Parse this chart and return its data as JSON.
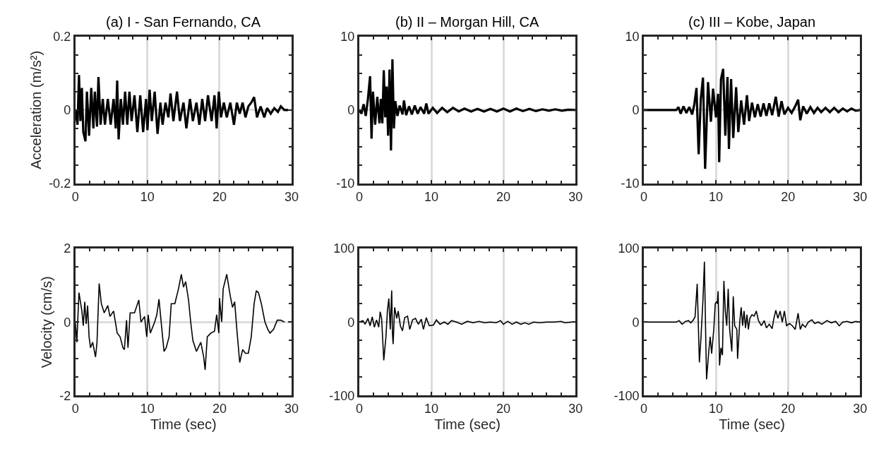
{
  "chart_data": [
    {
      "type": "line",
      "title": "(a) I - San Fernando, CA",
      "ylabel": "Acceleration (m/s²)",
      "xlim": [
        0,
        30
      ],
      "xticks": [
        0,
        10,
        20,
        30
      ],
      "ylim": [
        -0.2,
        0.2
      ],
      "yticks": [
        -0.2,
        0,
        0.2
      ],
      "grid": true,
      "series": [
        {
          "color": "#000000",
          "x": [
            0,
            0.3,
            0.5,
            0.7,
            0.9,
            1.1,
            1.4,
            1.6,
            1.9,
            2.2,
            2.5,
            2.7,
            3.0,
            3.2,
            3.5,
            3.8,
            4.1,
            4.5,
            4.9,
            5.3,
            5.6,
            5.8,
            6.0,
            6.3,
            6.6,
            6.9,
            7.2,
            7.5,
            7.8,
            8.2,
            8.6,
            9.0,
            9.4,
            9.8,
            10.0,
            10.3,
            10.6,
            11.0,
            11.4,
            11.8,
            12.1,
            12.5,
            12.9,
            13.2,
            13.6,
            14.1,
            14.5,
            15.0,
            15.4,
            15.9,
            16.3,
            16.8,
            17.2,
            17.6,
            18.0,
            18.4,
            18.9,
            19.3,
            19.6,
            19.9,
            20.2,
            20.6,
            21.0,
            21.5,
            22.0,
            22.4,
            22.8,
            23.2,
            23.6,
            24.0,
            24.4,
            24.8,
            25.2,
            25.7,
            26.2,
            26.6,
            27.1,
            27.6,
            28.1,
            28.5,
            29.0,
            29.5
          ],
          "values": [
            0,
            -0.04,
            0.095,
            -0.03,
            0.06,
            -0.06,
            -0.085,
            0.05,
            -0.07,
            0.06,
            -0.05,
            0.05,
            -0.045,
            0.09,
            -0.04,
            0.03,
            -0.04,
            0.03,
            -0.04,
            0.03,
            -0.05,
            0.08,
            -0.08,
            0.03,
            -0.04,
            0.05,
            -0.04,
            0.05,
            -0.03,
            0.04,
            -0.06,
            0.04,
            -0.06,
            0.03,
            -0.055,
            0.055,
            -0.03,
            0.05,
            -0.065,
            0.02,
            -0.04,
            0.02,
            -0.02,
            0.045,
            -0.03,
            0.05,
            -0.03,
            0.02,
            -0.05,
            0.03,
            -0.03,
            0.02,
            -0.04,
            0.03,
            -0.03,
            0.04,
            -0.03,
            0.04,
            -0.05,
            0.05,
            -0.02,
            0.02,
            -0.02,
            0.02,
            -0.04,
            0.02,
            -0.01,
            0.02,
            -0.02,
            0.01,
            0.02,
            0.035,
            -0.02,
            0.01,
            -0.02,
            0.005,
            -0.01,
            0.005,
            -0.005,
            0.01,
            0,
            0
          ]
        }
      ]
    },
    {
      "type": "line",
      "title": "(b) II – Morgan Hill, CA",
      "xlim": [
        0,
        30
      ],
      "xticks": [
        0,
        10,
        20,
        30
      ],
      "ylim": [
        -10,
        10
      ],
      "yticks": [
        -10,
        0,
        10
      ],
      "grid": true,
      "series": [
        {
          "color": "#000000",
          "x": [
            0,
            0.3,
            0.6,
            0.9,
            1.2,
            1.5,
            1.7,
            1.9,
            2.2,
            2.5,
            2.8,
            3.0,
            3.2,
            3.4,
            3.6,
            3.8,
            4.0,
            4.2,
            4.4,
            4.6,
            4.8,
            5.0,
            5.3,
            5.6,
            6.0,
            6.2,
            6.5,
            6.9,
            7.3,
            7.7,
            8.1,
            8.5,
            9.0,
            9.3,
            9.6,
            10.2,
            10.8,
            11.5,
            12.2,
            13.0,
            13.8,
            14.6,
            15.5,
            16.4,
            17.3,
            18.2,
            19.1,
            20.0,
            20.9,
            21.8,
            22.7,
            23.6,
            24.5,
            25.4,
            26.3,
            27.2,
            28.1,
            29.0,
            30
          ],
          "values": [
            0,
            -0.5,
            0.8,
            -0.8,
            1.5,
            4.6,
            -3.9,
            2.5,
            -2,
            1.8,
            -1.8,
            1.5,
            -1.8,
            5.4,
            -1,
            3.2,
            -3.5,
            5.5,
            -5.5,
            6.9,
            -2.5,
            1.2,
            -0.8,
            0.6,
            -0.6,
            1.3,
            -0.7,
            0.5,
            -0.6,
            0.6,
            -0.5,
            0.4,
            -0.5,
            0.9,
            -0.5,
            0.3,
            -0.4,
            0.3,
            -0.3,
            0.3,
            -0.2,
            0.2,
            -0.2,
            0.15,
            -0.2,
            0.15,
            -0.2,
            0.2,
            -0.2,
            0.2,
            -0.15,
            0.15,
            -0.15,
            0.1,
            -0.1,
            0.1,
            -0.1,
            0.05,
            0
          ]
        }
      ]
    },
    {
      "type": "line",
      "title": "(c) III – Kobe, Japan",
      "xlim": [
        0,
        30
      ],
      "xticks": [
        0,
        10,
        20,
        30
      ],
      "ylim": [
        -10,
        10
      ],
      "yticks": [
        -10,
        0,
        10
      ],
      "grid": true,
      "series": [
        {
          "color": "#000000",
          "x": [
            0,
            4.5,
            4.8,
            5.1,
            5.5,
            5.9,
            6.3,
            6.7,
            7.0,
            7.3,
            7.6,
            7.9,
            8.2,
            8.5,
            8.9,
            9.3,
            9.6,
            10.0,
            10.3,
            10.45,
            10.7,
            11.0,
            11.3,
            11.6,
            11.8,
            12.1,
            12.4,
            12.8,
            13.1,
            13.5,
            13.9,
            14.3,
            14.6,
            15.0,
            15.4,
            15.8,
            16.2,
            16.6,
            17.0,
            17.4,
            17.8,
            18.3,
            18.7,
            19.1,
            19.5,
            20.0,
            20.5,
            21.0,
            21.4,
            21.7,
            22.1,
            22.6,
            23.1,
            23.6,
            24.1,
            24.6,
            25.2,
            25.8,
            26.4,
            27.0,
            27.6,
            28.2,
            28.8,
            29.4,
            30
          ],
          "values": [
            0,
            0,
            0.4,
            -0.5,
            0.5,
            -0.4,
            0.4,
            -0.6,
            0.8,
            3.0,
            -6.0,
            1.5,
            4.4,
            -8.0,
            3.8,
            -1.6,
            2.9,
            -1.0,
            2.2,
            -7.1,
            4.2,
            5.6,
            -3.5,
            4.5,
            -5.3,
            4.2,
            -3.8,
            3.1,
            -3.0,
            1.3,
            -2.0,
            2.0,
            -1.5,
            1.0,
            -1.0,
            0.8,
            -0.9,
            0.9,
            -0.8,
            0.9,
            -0.7,
            1.8,
            -0.9,
            1.2,
            -0.6,
            0.3,
            -0.4,
            0.5,
            1.4,
            -1.4,
            0.5,
            -0.5,
            0.4,
            -0.4,
            0.3,
            -0.3,
            0.3,
            -0.3,
            0.3,
            -0.3,
            0.2,
            -0.2,
            0.2,
            -0.1,
            0
          ]
        }
      ]
    },
    {
      "type": "line",
      "ylabel": "Velocity (cm/s)",
      "xlabel": "Time (sec)",
      "xlim": [
        0,
        30
      ],
      "xticks": [
        0,
        10,
        20,
        30
      ],
      "ylim": [
        -2,
        2
      ],
      "yticks": [
        -2,
        0,
        2
      ],
      "grid": true,
      "series": [
        {
          "color": "#000000",
          "x": [
            0,
            0.2,
            0.5,
            0.9,
            1.1,
            1.3,
            1.5,
            1.7,
            1.9,
            2.1,
            2.4,
            2.8,
            3.0,
            3.3,
            3.6,
            4.0,
            4.5,
            4.8,
            5.3,
            5.8,
            6.2,
            6.6,
            6.8,
            7.1,
            7.3,
            7.6,
            8.2,
            8.8,
            9.1,
            9.6,
            9.9,
            10.1,
            10.4,
            11.0,
            11.3,
            11.6,
            12.0,
            12.3,
            12.6,
            13.0,
            13.3,
            13.8,
            14.3,
            14.7,
            15.0,
            15.3,
            15.7,
            16.0,
            16.3,
            16.8,
            17.4,
            17.8,
            18.0,
            18.3,
            18.8,
            19.3,
            19.6,
            19.9,
            20.0,
            20.3,
            20.5,
            21.0,
            21.5,
            21.8,
            22.1,
            22.4,
            22.8,
            23.2,
            23.6,
            24.0,
            24.4,
            24.8,
            25.1,
            25.4,
            25.8,
            26.3,
            26.7,
            27.0,
            27.5,
            28.0,
            28.5,
            29.0
          ],
          "values": [
            0,
            -0.55,
            0.8,
            0.3,
            -0.1,
            0.55,
            -0.05,
            0.45,
            -0.4,
            -0.7,
            -0.55,
            -0.95,
            -0.55,
            1.05,
            0.5,
            0.25,
            0.45,
            0.15,
            0.3,
            -0.3,
            -0.4,
            -0.7,
            -0.75,
            0.05,
            -0.7,
            0.25,
            0.25,
            0.6,
            0.0,
            0.15,
            -0.4,
            0.2,
            -0.3,
            0.0,
            0.2,
            0.62,
            -0.2,
            -0.8,
            -0.7,
            -0.4,
            0.5,
            0.5,
            0.9,
            1.3,
            0.95,
            1.1,
            0.6,
            0.0,
            -0.5,
            -0.8,
            -0.55,
            -0.95,
            -1.3,
            -0.4,
            -0.3,
            -0.25,
            0.2,
            -0.3,
            0.65,
            0.0,
            0.9,
            1.3,
            0.7,
            0.4,
            0.55,
            -0.2,
            -1.1,
            -0.75,
            -0.85,
            -0.85,
            -0.4,
            0.5,
            0.85,
            0.8,
            0.5,
            0.0,
            -0.2,
            -0.3,
            -0.2,
            0.05,
            0.05,
            0.0
          ]
        }
      ]
    },
    {
      "type": "line",
      "xlabel": "Time (sec)",
      "xlim": [
        0,
        30
      ],
      "xticks": [
        0,
        10,
        20,
        30
      ],
      "ylim": [
        -100,
        100
      ],
      "yticks": [
        -100,
        0,
        100
      ],
      "grid": true,
      "series": [
        {
          "color": "#000000",
          "x": [
            0,
            0.5,
            0.8,
            1.2,
            1.5,
            1.8,
            2.1,
            2.4,
            2.7,
            2.9,
            3.1,
            3.4,
            3.7,
            3.9,
            4.1,
            4.3,
            4.5,
            4.6,
            4.7,
            4.9,
            5.2,
            5.4,
            5.7,
            6.0,
            6.3,
            6.7,
            7.0,
            7.4,
            7.8,
            8.2,
            8.6,
            8.9,
            9.3,
            9.7,
            10.3,
            10.7,
            11.2,
            11.8,
            12.3,
            12.8,
            13.5,
            14.2,
            15.0,
            15.8,
            16.6,
            17.4,
            18.2,
            19.0,
            19.6,
            20.0,
            20.6,
            21.2,
            21.8,
            22.4,
            23.0,
            23.5,
            24.2,
            25.0,
            26.0,
            27.0,
            28.0,
            28.5,
            29.5,
            30
          ],
          "values": [
            0,
            2,
            -3,
            5,
            -5,
            7,
            -7,
            3,
            -7,
            14,
            5,
            -52,
            -20,
            15,
            32,
            -10,
            43,
            -15,
            -30,
            20,
            5,
            15,
            -5,
            -12,
            6,
            8,
            -10,
            3,
            5,
            -3,
            4,
            -10,
            6,
            -5,
            -4,
            3,
            -3,
            0,
            -3,
            2,
            0,
            -3,
            1,
            -1,
            1,
            -1,
            0,
            -1,
            2,
            -3,
            1,
            -3,
            0,
            -3,
            -1,
            -3,
            0,
            -1,
            0,
            0,
            1,
            -1,
            0,
            0
          ]
        }
      ]
    },
    {
      "type": "line",
      "xlabel": "Time (sec)",
      "xlim": [
        0,
        30
      ],
      "xticks": [
        0,
        10,
        20,
        30
      ],
      "ylim": [
        -100,
        100
      ],
      "yticks": [
        -100,
        0,
        100
      ],
      "grid": true,
      "series": [
        {
          "color": "#000000",
          "x": [
            0,
            4.5,
            4.9,
            5.3,
            5.8,
            6.2,
            6.5,
            6.8,
            7.1,
            7.4,
            7.7,
            7.9,
            8.2,
            8.4,
            8.6,
            8.7,
            9.0,
            9.2,
            9.4,
            9.7,
            9.9,
            10.1,
            10.2,
            10.3,
            10.5,
            10.7,
            10.9,
            11.1,
            11.3,
            11.5,
            11.7,
            11.9,
            12.2,
            12.4,
            12.6,
            12.9,
            13.0,
            13.3,
            13.5,
            13.7,
            13.9,
            14.1,
            14.3,
            14.5,
            14.7,
            15.0,
            15.3,
            15.6,
            15.9,
            16.3,
            16.7,
            17.0,
            17.4,
            17.8,
            18.0,
            18.3,
            18.6,
            18.9,
            19.2,
            19.5,
            19.8,
            20.2,
            20.6,
            21.0,
            21.4,
            21.7,
            22.0,
            22.4,
            22.8,
            23.3,
            23.7,
            24.2,
            24.7,
            25.4,
            26.0,
            26.6,
            27.1,
            27.6,
            28.2,
            28.8,
            29.4,
            30
          ],
          "values": [
            0,
            0,
            2,
            -3,
            1,
            2,
            -1,
            2,
            7,
            52,
            -55,
            -25,
            30,
            82,
            -30,
            -78,
            -40,
            -20,
            -43,
            -10,
            25,
            28,
            25,
            42,
            -59,
            -35,
            -45,
            56,
            15,
            -5,
            45,
            -10,
            -40,
            35,
            -5,
            -10,
            -50,
            0,
            20,
            -5,
            15,
            -8,
            10,
            -10,
            5,
            10,
            8,
            15,
            2,
            -5,
            2,
            -8,
            -3,
            -9,
            3,
            16,
            5,
            15,
            0,
            15,
            -5,
            -2,
            -5,
            -10,
            12,
            -10,
            -3,
            -7,
            0,
            3,
            -2,
            0,
            -3,
            2,
            -1,
            1,
            -5,
            0,
            1,
            -1,
            1,
            0
          ]
        }
      ]
    }
  ]
}
